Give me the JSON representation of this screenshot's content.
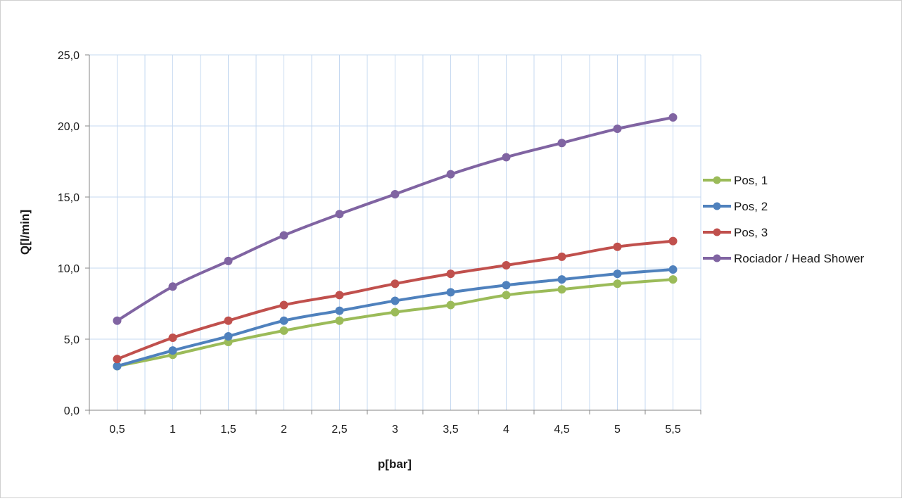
{
  "chart_data": {
    "type": "line",
    "title": "",
    "xlabel": "p[bar]",
    "ylabel": "Q[l/min]",
    "x": [
      0.5,
      1,
      1.5,
      2,
      2.5,
      3,
      3.5,
      4,
      4.5,
      5,
      5.5
    ],
    "x_tick_labels": [
      "0,5",
      "1",
      "1,5",
      "2",
      "2,5",
      "3",
      "3,5",
      "4",
      "4,5",
      "5",
      "5,5"
    ],
    "ylim": [
      0,
      25
    ],
    "y_ticks": [
      0,
      5,
      10,
      15,
      20,
      25
    ],
    "y_tick_labels": [
      "0,0",
      "5,0",
      "10,0",
      "15,0",
      "20,0",
      "25,0"
    ],
    "grid": true,
    "legend_position": "right",
    "series": [
      {
        "name": "Pos, 1",
        "color": "#9bbb59",
        "values": [
          3.1,
          3.9,
          4.8,
          5.6,
          6.3,
          6.9,
          7.4,
          8.1,
          8.5,
          8.9,
          9.2
        ]
      },
      {
        "name": "Pos, 2",
        "color": "#4f81bd",
        "values": [
          3.1,
          4.2,
          5.2,
          6.3,
          7.0,
          7.7,
          8.3,
          8.8,
          9.2,
          9.6,
          9.9
        ]
      },
      {
        "name": "Pos, 3",
        "color": "#c0504d",
        "values": [
          3.6,
          5.1,
          6.3,
          7.4,
          8.1,
          8.9,
          9.6,
          10.2,
          10.8,
          11.5,
          11.9
        ]
      },
      {
        "name": "Rociador / Head Shower",
        "color": "#8064a2",
        "values": [
          6.3,
          8.7,
          10.5,
          12.3,
          13.8,
          15.2,
          16.6,
          17.8,
          18.8,
          19.8,
          20.6
        ]
      }
    ]
  }
}
